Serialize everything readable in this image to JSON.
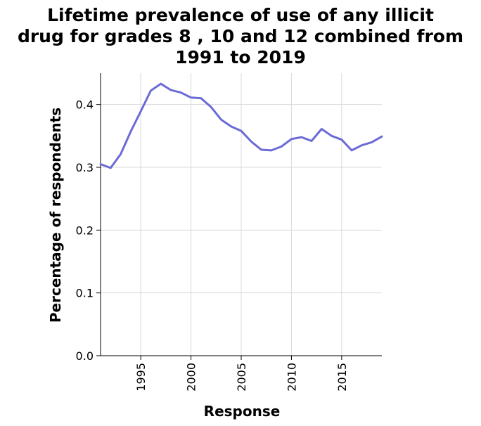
{
  "chart_data": {
    "type": "line",
    "title_lines": [
      "Lifetime prevalence of use of any illicit",
      "drug for grades 8 , 10 and 12 combined from",
      "1991 to 2019"
    ],
    "xlabel": "Response",
    "ylabel": "Percentage of respondents",
    "xlim": [
      1991,
      2019
    ],
    "ylim": [
      0,
      0.45
    ],
    "x_ticks": [
      1995,
      2000,
      2005,
      2010,
      2015
    ],
    "y_ticks": [
      0.0,
      0.1,
      0.2,
      0.3,
      0.4
    ],
    "y_tick_labels": [
      "0.0",
      "0.1",
      "0.2",
      "0.3",
      "0.4"
    ],
    "grid": true,
    "line_color": "#6b6bd6",
    "series": [
      {
        "x": [
          1991,
          1992,
          1993,
          1994,
          1995,
          1996,
          1997,
          1998,
          1999,
          2000,
          2001,
          2002,
          2003,
          2004,
          2005,
          2006,
          2007,
          2008,
          2009,
          2010,
          2011,
          2012,
          2013,
          2014,
          2015,
          2016,
          2017,
          2018,
          2019
        ],
        "values": [
          0.305,
          0.299,
          0.321,
          0.357,
          0.389,
          0.422,
          0.433,
          0.423,
          0.419,
          0.411,
          0.41,
          0.396,
          0.376,
          0.365,
          0.358,
          0.341,
          0.328,
          0.327,
          0.333,
          0.345,
          0.348,
          0.342,
          0.361,
          0.35,
          0.344,
          0.327,
          0.335,
          0.34,
          0.349
        ]
      }
    ]
  }
}
